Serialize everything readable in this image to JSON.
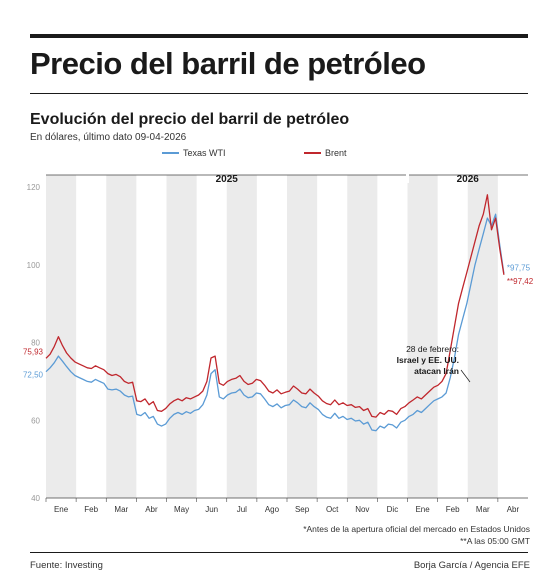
{
  "header": {
    "title": "Precio del barril de petróleo"
  },
  "chart_data": {
    "type": "line",
    "title": "Evolución del precio del barril de petróleo",
    "subtitle": "En dólares, último dato 09-04-2026",
    "ylim": [
      40,
      120
    ],
    "yticks": [
      40,
      60,
      80,
      100,
      120
    ],
    "month_labels": [
      "Ene",
      "Feb",
      "Mar",
      "Abr",
      "May",
      "Jun",
      "Jul",
      "Ago",
      "Sep",
      "Oct",
      "Nov",
      "Dic",
      "Ene",
      "Feb",
      "Mar",
      "Abr"
    ],
    "year_labels": [
      "2025",
      "2026"
    ],
    "grid": "alternating month bands",
    "legend_position": "top",
    "series": [
      {
        "name": "Texas WTI",
        "color": "#5b9bd5",
        "start_label": "72,50",
        "end_label": "*97,75",
        "values": [
          72.5,
          73.5,
          74.8,
          76.5,
          75.2,
          73.8,
          72.5,
          71.5,
          71.0,
          70.5,
          70.0,
          69.8,
          70.5,
          70.0,
          69.5,
          68.0,
          67.8,
          68.0,
          67.5,
          66.5,
          66.0,
          66.2,
          61.5,
          61.2,
          62.0,
          60.5,
          61.0,
          59.0,
          58.5,
          59.0,
          60.5,
          61.5,
          62.0,
          61.5,
          62.2,
          61.8,
          62.5,
          62.8,
          64.0,
          66.5,
          72.0,
          73.0,
          66.0,
          65.5,
          66.5,
          67.0,
          67.2,
          68.0,
          66.5,
          65.8,
          66.0,
          67.0,
          66.8,
          65.5,
          64.0,
          63.5,
          64.2,
          63.2,
          63.8,
          64.0,
          65.2,
          64.5,
          63.5,
          63.2,
          64.5,
          63.5,
          62.8,
          61.5,
          60.8,
          60.5,
          61.8,
          60.5,
          61.0,
          60.2,
          60.5,
          59.8,
          60.0,
          59.0,
          59.5,
          57.5,
          57.3,
          58.5,
          58.0,
          59.0,
          58.8,
          58.0,
          59.5,
          60.0,
          61.0,
          61.5,
          62.5,
          62.0,
          63.0,
          64.0,
          65.0,
          65.5,
          66.0,
          67.0,
          71.0,
          76.0,
          82.0,
          86.0,
          90.0,
          95.0,
          100.0,
          104.0,
          108.0,
          112.0,
          110.0,
          113.0,
          105.0,
          97.75
        ]
      },
      {
        "name": "Brent",
        "color": "#c0272d",
        "start_label": "75,93",
        "end_label": "**97,42",
        "values": [
          75.93,
          77.0,
          79.0,
          81.5,
          79.2,
          77.3,
          76.0,
          75.0,
          74.5,
          74.0,
          73.5,
          73.3,
          74.0,
          73.5,
          73.0,
          72.0,
          71.5,
          71.8,
          71.2,
          70.0,
          69.5,
          69.8,
          65.0,
          64.8,
          65.5,
          64.0,
          64.8,
          62.5,
          62.3,
          63.0,
          64.2,
          65.0,
          65.5,
          65.0,
          65.8,
          65.5,
          66.0,
          66.5,
          67.5,
          70.0,
          76.0,
          76.5,
          69.5,
          69.0,
          70.0,
          70.5,
          70.8,
          71.5,
          70.0,
          69.2,
          69.5,
          70.5,
          70.2,
          69.0,
          67.5,
          67.0,
          67.8,
          66.8,
          67.2,
          67.5,
          68.8,
          68.0,
          67.0,
          66.8,
          68.0,
          67.0,
          66.2,
          65.0,
          64.3,
          64.0,
          65.2,
          64.0,
          64.5,
          63.8,
          64.0,
          63.3,
          63.5,
          62.5,
          63.0,
          61.0,
          60.8,
          62.0,
          61.5,
          62.5,
          62.3,
          61.5,
          63.0,
          63.5,
          64.5,
          65.2,
          66.0,
          65.5,
          66.5,
          67.5,
          68.5,
          69.0,
          70.0,
          72.0,
          78.0,
          84.0,
          90.0,
          94.0,
          98.0,
          102.0,
          106.0,
          110.0,
          113.0,
          118.0,
          109.0,
          112.0,
          104.0,
          97.42
        ]
      }
    ],
    "annotation": {
      "line1": "28 de febrero:",
      "line2": "Israel y EE. UU.",
      "line3": "atacan Irán"
    }
  },
  "footnotes": {
    "line1": "*Antes de la apertura oficial del mercado en Estados Unidos",
    "line2": "**A las 05:00 GMT"
  },
  "footer": {
    "source": "Fuente: Investing",
    "credit": "Borja García / Agencia EFE"
  }
}
